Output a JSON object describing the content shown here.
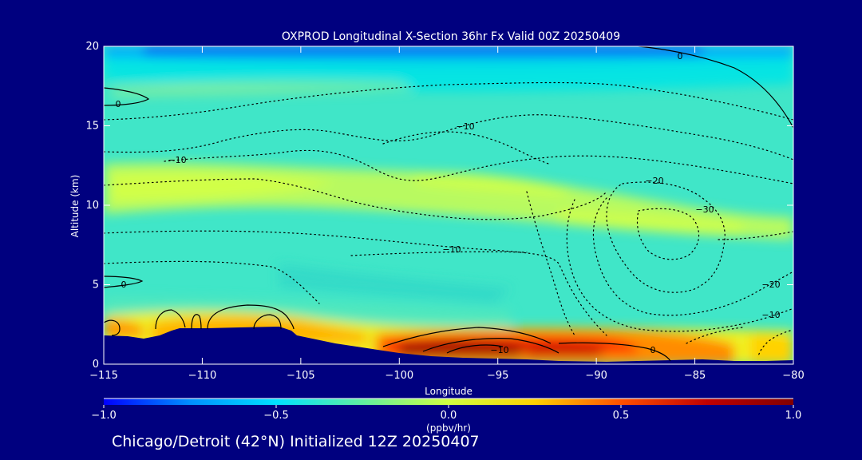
{
  "chart_data": {
    "type": "heatmap",
    "title": "OXPROD Longitudinal X-Section 36hr  Fx Valid 00Z 20250409",
    "xlabel": "Longitude",
    "ylabel": "Altitude (km)",
    "xlim": [
      -115,
      -80
    ],
    "ylim": [
      0,
      20
    ],
    "x_ticks": [
      -115,
      -110,
      -105,
      -100,
      -95,
      -90,
      -85,
      -80
    ],
    "x_tick_labels": [
      "−115",
      "−110",
      "−105",
      "−100",
      "−95",
      "−90",
      "−85",
      "−80"
    ],
    "y_ticks": [
      0,
      5,
      10,
      15,
      20
    ],
    "y_tick_labels": [
      "0",
      "5",
      "10",
      "15",
      "20"
    ],
    "colorbar": {
      "min": -1.0,
      "max": 1.0,
      "ticks": [
        -1.0,
        -0.5,
        0.0,
        0.5,
        1.0
      ],
      "tick_labels": [
        "−1.0",
        "−0.5",
        "0.0",
        "0.5",
        "1.0"
      ],
      "units": "(ppbv/hr)",
      "colormap": [
        "#0000ff",
        "#0090ff",
        "#00e0ff",
        "#60f0a0",
        "#d0ff40",
        "#ffd000",
        "#ff5000",
        "#c00000",
        "#800000"
      ]
    },
    "contour_labels": [
      "0",
      "0",
      "0",
      "−10",
      "−10",
      "−10",
      "−20",
      "−30",
      "−20",
      "−10",
      "−10",
      "0"
    ],
    "terrain_color": "#00007f",
    "background_color": "#00007f"
  },
  "footer": {
    "caption": "Chicago/Detroit (42°N) Initialized 12Z 20250407"
  }
}
